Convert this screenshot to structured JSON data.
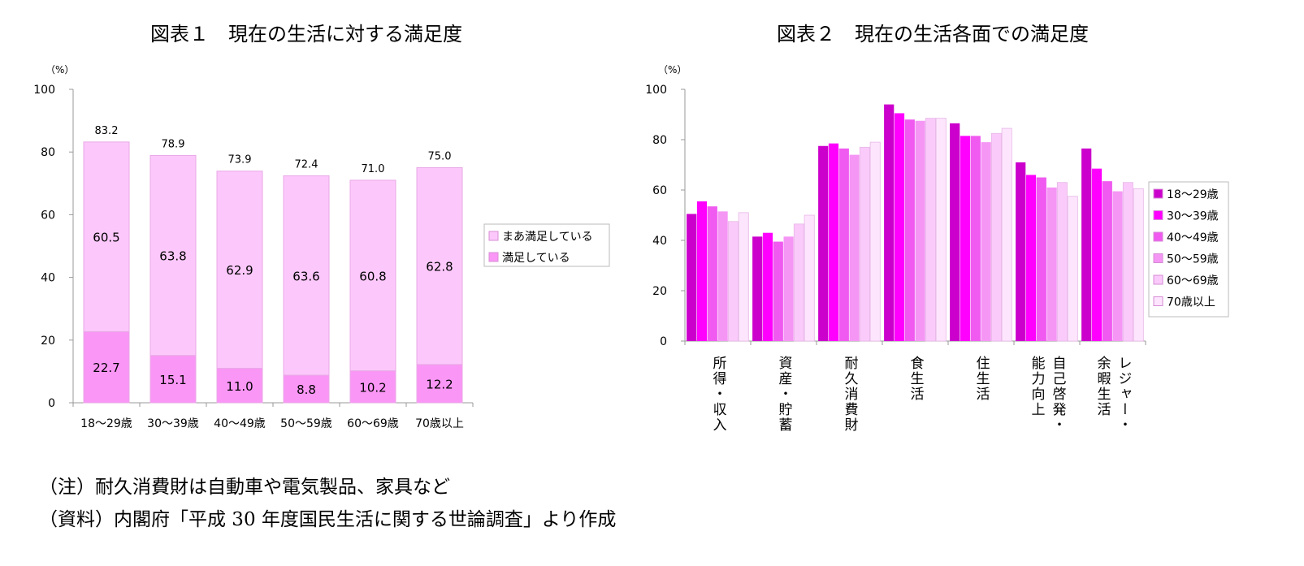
{
  "chart_data": [
    {
      "type": "bar",
      "stacked": true,
      "title": "図表１　現在の生活に対する満足度",
      "unit_label": "（%）",
      "ylim": [
        0,
        100
      ],
      "yticks": [
        0,
        20,
        40,
        60,
        80,
        100
      ],
      "categories": [
        "18～29歳",
        "30～39歳",
        "40～49歳",
        "50～59歳",
        "60～69歳",
        "70歳以上"
      ],
      "series": [
        {
          "name": "満足している",
          "values": [
            22.7,
            15.1,
            11.0,
            8.8,
            10.2,
            12.2
          ],
          "labels": [
            "22.7",
            "15.1",
            "11.0",
            "8.8",
            "10.2",
            "12.2"
          ],
          "color": "#fa96f5"
        },
        {
          "name": "まあ満足している",
          "values": [
            60.5,
            63.8,
            62.9,
            63.6,
            60.8,
            62.8
          ],
          "labels": [
            "60.5",
            "63.8",
            "62.9",
            "63.6",
            "60.8",
            "62.8"
          ],
          "color": "#fcc8fb"
        }
      ],
      "totals": [
        "83.2",
        "78.9",
        "73.9",
        "72.4",
        "71.0",
        "75.0"
      ],
      "legend": {
        "position": "right",
        "order": [
          "まあ満足している",
          "満足している"
        ]
      }
    },
    {
      "type": "bar",
      "title": "図表２　現在の生活各面での満足度",
      "unit_label": "（%）",
      "ylim": [
        0,
        100
      ],
      "yticks": [
        0,
        20,
        40,
        60,
        80,
        100
      ],
      "categories": [
        "所得・収入",
        "資産・貯蓄",
        "耐久消費財",
        "食生活",
        "住生活",
        "自己啓発・能力向上",
        "レジャー・余暇生活"
      ],
      "category_lines": [
        [
          "所得・収入"
        ],
        [
          "資産・貯蓄"
        ],
        [
          "耐久消費財"
        ],
        [
          "食生活"
        ],
        [
          "住生活"
        ],
        [
          "自己啓発・",
          "能力向上"
        ],
        [
          "レジャー・",
          "余暇生活"
        ]
      ],
      "series": [
        {
          "name": "18～29歳",
          "color": "#cc00cc",
          "values": [
            50.5,
            41.5,
            77.5,
            94,
            86.5,
            71,
            76.5
          ]
        },
        {
          "name": "30～39歳",
          "color": "#ff00ff",
          "values": [
            55.5,
            43,
            78.5,
            90.5,
            81.5,
            66,
            68.5
          ]
        },
        {
          "name": "40～49歳",
          "color": "#f05af0",
          "values": [
            53.5,
            39.5,
            76.5,
            88,
            81.5,
            65,
            63.5
          ]
        },
        {
          "name": "50～59歳",
          "color": "#f596f5",
          "values": [
            51.5,
            41.5,
            74,
            87.5,
            79,
            61,
            59.5
          ]
        },
        {
          "name": "60～69歳",
          "color": "#facbfa",
          "values": [
            47.5,
            46.5,
            77,
            88.5,
            82.5,
            63,
            63
          ]
        },
        {
          "name": "70歳以上",
          "color": "#fde6fd",
          "values": [
            51,
            50,
            79,
            88.5,
            84.5,
            57.5,
            60.5
          ]
        }
      ],
      "legend": {
        "position": "right"
      }
    }
  ],
  "notes": {
    "note1": "（注）耐久消費財は自動車や電気製品、家具など",
    "note2": "（資料）内閣府「平成 30 年度国民生活に関する世論調査」より作成"
  }
}
